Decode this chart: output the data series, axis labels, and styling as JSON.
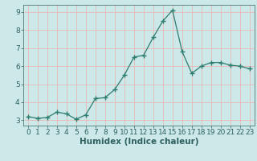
{
  "x": [
    0,
    1,
    2,
    3,
    4,
    5,
    6,
    7,
    8,
    9,
    10,
    11,
    12,
    13,
    14,
    15,
    16,
    17,
    18,
    19,
    20,
    21,
    22,
    23
  ],
  "y": [
    3.2,
    3.1,
    3.15,
    3.45,
    3.35,
    3.05,
    3.3,
    4.2,
    4.25,
    4.7,
    5.5,
    6.5,
    6.6,
    7.6,
    8.5,
    9.1,
    6.8,
    5.6,
    6.0,
    6.2,
    6.2,
    6.05,
    6.0,
    5.85
  ],
  "xlabel": "Humidex (Indice chaleur)",
  "ylim": [
    2.7,
    9.4
  ],
  "xlim": [
    -0.5,
    23.5
  ],
  "yticks": [
    3,
    4,
    5,
    6,
    7,
    8,
    9
  ],
  "xticks": [
    0,
    1,
    2,
    3,
    4,
    5,
    6,
    7,
    8,
    9,
    10,
    11,
    12,
    13,
    14,
    15,
    16,
    17,
    18,
    19,
    20,
    21,
    22,
    23
  ],
  "line_color": "#2e7d6e",
  "marker": "+",
  "marker_size": 5,
  "bg_color": "#cce8e8",
  "grid_color": "#e8b8b8",
  "axis_color": "#4a7a72",
  "tick_color": "#2e6060",
  "label_color": "#2e6060",
  "xlabel_fontsize": 7.5,
  "tick_fontsize": 6.5
}
